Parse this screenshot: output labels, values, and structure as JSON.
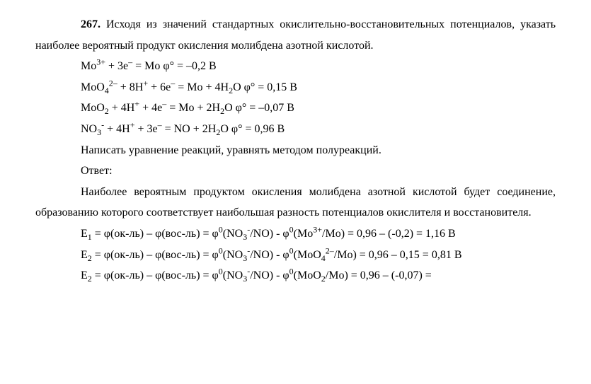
{
  "problem": {
    "number": "267.",
    "text_part1": " Исходя из значений стандартных окислительно-восстановительных потенциалов, указать наиболее вероятный продукт окисления молибдена азотной кислотой."
  },
  "equations": {
    "eq1_pre": "Mo",
    "eq1_sup1": "3+",
    "eq1_mid1": " + 3e",
    "eq1_sup2": "–",
    "eq1_post": " = Mo φ° = –0,2 В",
    "eq2_pre": "MoO",
    "eq2_sub1": "4",
    "eq2_sup1": "2–",
    "eq2_mid1": " + 8H",
    "eq2_sup2": "+",
    "eq2_mid2": " + 6e",
    "eq2_sup3": "–",
    "eq2_mid3": " = Mo + 4H",
    "eq2_sub2": "2",
    "eq2_post": "O φ° = 0,15 В",
    "eq3_pre": "MoO",
    "eq3_sub1": "2",
    "eq3_mid1": " + 4H",
    "eq3_sup1": "+",
    "eq3_mid2": " + 4e",
    "eq3_sup2": "–",
    "eq3_mid3": " = Mo + 2H",
    "eq3_sub2": "2",
    "eq3_post": "O φ° = –0,07 В",
    "eq4_pre": "NO",
    "eq4_sub1": "3",
    "eq4_sup1": "-",
    "eq4_mid1": " + 4H",
    "eq4_sup2": "+",
    "eq4_mid2": " + 3e",
    "eq4_sup3": "–",
    "eq4_mid3": " = NO + 2H",
    "eq4_sub2": "2",
    "eq4_post": "O φ° = 0,96 В"
  },
  "task": "Написать уравнение реакций, уравнять методом полуреакций.",
  "answer_label": "Ответ:",
  "answer_text": "Наиболее вероятным продуктом окисления молибдена азотной кислотой будет соединение, образованию которого соответствует наибольшая разность потенциалов окислителя и восстановителя.",
  "calc": {
    "e1_pre": "E",
    "e1_sub": "1",
    "e1_mid1": " = φ(ок-ль) – φ(вос-ль) = φ",
    "e1_sup1": "0",
    "e1_mid2": "(NO",
    "e1_sub2": "3",
    "e1_sup2": "-",
    "e1_mid3": "/NO) - φ",
    "e1_sup3": "0",
    "e1_mid4": "(Mo",
    "e1_sup4": "3+",
    "e1_mid5": "/Mo) = 0,96 – (-0,2) = 1,16 В",
    "e2_pre": "E",
    "e2_sub": "2",
    "e2_mid1": " = φ(ок-ль) – φ(вос-ль) = φ",
    "e2_sup1": "0",
    "e2_mid2": "(NO",
    "e2_sub2": "3",
    "e2_sup2": "-",
    "e2_mid3": "/NO) - φ",
    "e2_sup3": "0",
    "e2_mid4": "(MoO",
    "e2_sub3": "4",
    "e2_sup4": "2–",
    "e2_mid5": "/Mo) = 0,96 – 0,15 = 0,81 В",
    "e3_pre": "E",
    "e3_sub": "2",
    "e3_mid1": " = φ(ок-ль) – φ(вос-ль) = φ",
    "e3_sup1": "0",
    "e3_mid2": "(NO",
    "e3_sub2": "3",
    "e3_sup2": "-",
    "e3_mid3": "/NO) - φ",
    "e3_sup3": "0",
    "e3_mid4": "(MoO",
    "e3_sub3": "2",
    "e3_mid5": "/Mo) = 0,96 – (-0,07) ="
  }
}
